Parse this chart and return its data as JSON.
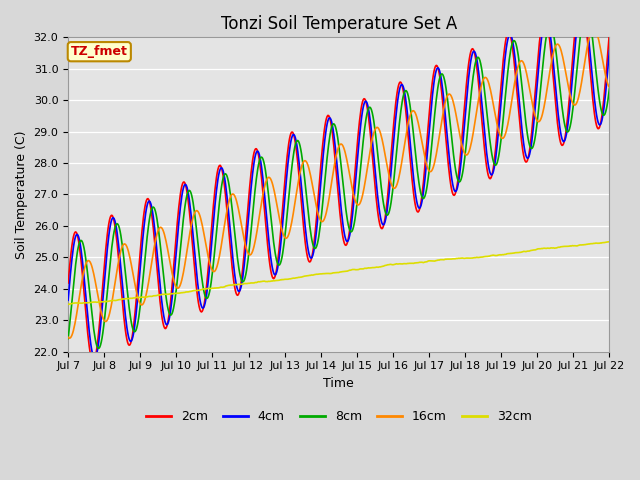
{
  "title": "Tonzi Soil Temperature Set A",
  "xlabel": "Time",
  "ylabel": "Soil Temperature (C)",
  "ylim": [
    22.0,
    32.0
  ],
  "yticks": [
    22.0,
    23.0,
    24.0,
    25.0,
    26.0,
    27.0,
    28.0,
    29.0,
    30.0,
    31.0,
    32.0
  ],
  "annotation_text": "TZ_fmet",
  "annotation_color": "#cc0000",
  "annotation_bg": "#ffffcc",
  "annotation_border": "#bb8800",
  "series": [
    {
      "label": "2cm",
      "color": "#ff0000"
    },
    {
      "label": "4cm",
      "color": "#0000ff"
    },
    {
      "label": "8cm",
      "color": "#00aa00"
    },
    {
      "label": "16cm",
      "color": "#ff8800"
    },
    {
      "label": "32cm",
      "color": "#dddd00"
    }
  ],
  "xtick_labels": [
    "Jul 7",
    "Jul 8",
    "Jul 9",
    "Jul 10",
    "Jul 11",
    "Jul 12",
    "Jul 13",
    "Jul 14",
    "Jul 15",
    "Jul 16",
    "Jul 17",
    "Jul 18",
    "Jul 19",
    "Jul 20",
    "Jul 21",
    "Jul 22"
  ],
  "n_days": 15,
  "points_per_day": 48,
  "base_temp": 23.5,
  "trend": 0.53,
  "amplitudes": [
    2.2,
    2.1,
    1.85,
    1.1,
    0.0
  ],
  "phase_shifts": [
    0.0,
    0.04,
    0.15,
    0.35,
    0.0
  ],
  "base_32cm": 23.5,
  "trend_32cm": 0.135,
  "background_color": "#d8d8d8",
  "plot_bg_color": "#e4e4e4",
  "title_fontsize": 12,
  "axis_label_fontsize": 9,
  "tick_fontsize": 8,
  "legend_fontsize": 9,
  "linewidth": 1.2
}
